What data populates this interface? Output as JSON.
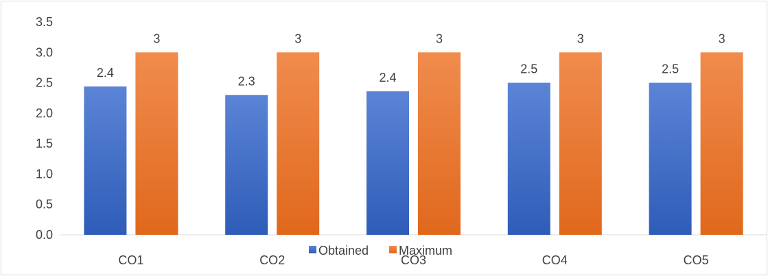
{
  "chart_data": {
    "type": "bar",
    "categories": [
      "CO1",
      "CO2",
      "CO3",
      "CO4",
      "CO5"
    ],
    "series": [
      {
        "name": "Obtained",
        "values": [
          2.44,
          2.3,
          2.36,
          2.5,
          2.5
        ],
        "labels": [
          "2.4",
          "2.3",
          "2.4",
          "2.5",
          "2.5"
        ],
        "color": "#4472C4"
      },
      {
        "name": "Maximum",
        "values": [
          3,
          3,
          3,
          3,
          3
        ],
        "labels": [
          "3",
          "3",
          "3",
          "3",
          "3"
        ],
        "color": "#ED7D31"
      }
    ],
    "yticks": [
      "0.0",
      "0.5",
      "1.0",
      "1.5",
      "2.0",
      "2.5",
      "3.0",
      "3.5"
    ],
    "ylim": [
      0,
      3.5
    ],
    "grid": false,
    "legend_position": "bottom",
    "title": "",
    "xlabel": "",
    "ylabel": ""
  }
}
